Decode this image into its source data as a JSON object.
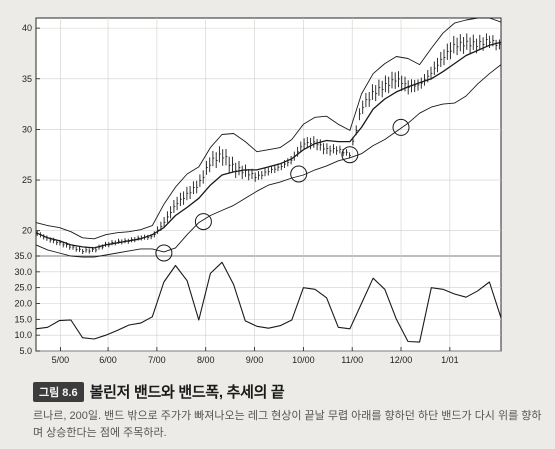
{
  "chart_data": [
    {
      "type": "line",
      "title": "",
      "xlabel": "",
      "ylabel": "",
      "ylim": [
        17.5,
        41
      ],
      "y_ticks": [
        20,
        25,
        30,
        35,
        40
      ],
      "x_ticks": [
        "5/00",
        "6/00",
        "7/00",
        "8/00",
        "9/00",
        "10/00",
        "11/00",
        "12/00",
        "1/01"
      ],
      "x_tick_positions": [
        0.5,
        21,
        42,
        63,
        84,
        105,
        126,
        147,
        168
      ],
      "x_range": [
        -10,
        190
      ],
      "grid": true,
      "series": [
        {
          "role": "price-midpoint",
          "x": [
            -10,
            -5,
            0,
            5,
            10,
            15,
            20,
            25,
            30,
            35,
            40,
            45,
            50,
            55,
            60,
            65,
            70,
            75,
            80,
            85,
            90,
            95,
            100,
            105,
            110,
            115,
            120,
            125,
            130,
            135,
            140,
            145,
            150,
            155,
            160,
            165,
            170,
            175,
            180,
            185,
            190
          ],
          "values": [
            19.8,
            19.2,
            18.8,
            18.4,
            18.0,
            18.1,
            18.6,
            18.9,
            19.0,
            19.3,
            19.4,
            20.8,
            22.6,
            23.6,
            24.6,
            26.8,
            27.5,
            26.2,
            25.8,
            25.3,
            25.9,
            26.3,
            27.0,
            28.6,
            28.7,
            28.0,
            28.0,
            27.5,
            32.2,
            33.6,
            34.3,
            35.0,
            34.2,
            34.4,
            35.6,
            37.1,
            38.3,
            38.5,
            38.4,
            38.8,
            38.2
          ]
        },
        {
          "role": "upper-band",
          "x": [
            -10,
            -5,
            0,
            5,
            10,
            15,
            20,
            25,
            30,
            35,
            40,
            45,
            50,
            55,
            60,
            65,
            70,
            75,
            80,
            85,
            90,
            95,
            100,
            105,
            110,
            115,
            120,
            125,
            130,
            135,
            140,
            145,
            150,
            155,
            160,
            165,
            170,
            175,
            180,
            185,
            190
          ],
          "values": [
            20.8,
            20.5,
            20.3,
            19.9,
            19.3,
            19.2,
            19.6,
            19.8,
            19.9,
            20.1,
            20.5,
            22.6,
            24.3,
            25.6,
            26.3,
            28.2,
            29.5,
            29.6,
            28.8,
            27.8,
            28.0,
            28.2,
            29.0,
            30.5,
            31.2,
            31.3,
            30.5,
            29.9,
            33.5,
            35.5,
            36.5,
            37.2,
            37.0,
            36.4,
            38.0,
            39.5,
            40.5,
            40.8,
            41.0,
            41.0,
            40.6
          ]
        },
        {
          "role": "moving-average",
          "x": [
            -10,
            -5,
            0,
            5,
            10,
            15,
            20,
            25,
            30,
            35,
            40,
            45,
            50,
            55,
            60,
            65,
            70,
            75,
            80,
            85,
            90,
            95,
            100,
            105,
            110,
            115,
            120,
            125,
            130,
            135,
            140,
            145,
            150,
            155,
            160,
            165,
            170,
            175,
            180,
            185,
            190
          ],
          "values": [
            19.8,
            19.3,
            19.0,
            18.6,
            18.4,
            18.3,
            18.6,
            18.8,
            19.0,
            19.2,
            19.6,
            20.3,
            21.5,
            22.3,
            23.2,
            24.5,
            25.5,
            25.8,
            26.0,
            26.0,
            26.3,
            26.6,
            27.1,
            28.0,
            28.6,
            28.9,
            28.8,
            28.8,
            30.2,
            32.0,
            33.0,
            33.7,
            34.2,
            34.6,
            35.0,
            35.7,
            36.5,
            37.3,
            37.8,
            38.3,
            38.6
          ]
        },
        {
          "role": "lower-band",
          "x": [
            -10,
            -5,
            0,
            5,
            10,
            15,
            20,
            25,
            30,
            35,
            40,
            45,
            50,
            55,
            60,
            65,
            70,
            75,
            80,
            85,
            90,
            95,
            100,
            105,
            110,
            115,
            120,
            125,
            130,
            135,
            140,
            145,
            150,
            155,
            160,
            165,
            170,
            175,
            180,
            185,
            190
          ],
          "values": [
            18.6,
            18.1,
            17.8,
            17.5,
            17.4,
            17.4,
            17.6,
            17.8,
            18.0,
            18.2,
            18.2,
            17.9,
            18.3,
            19.6,
            20.8,
            21.5,
            22.0,
            22.5,
            23.2,
            23.9,
            24.5,
            24.8,
            25.2,
            25.5,
            26.0,
            26.4,
            26.9,
            27.2,
            27.6,
            28.4,
            29.0,
            29.8,
            30.6,
            31.6,
            32.2,
            32.5,
            32.6,
            33.3,
            34.5,
            35.5,
            36.4
          ]
        }
      ],
      "annotations": [
        {
          "type": "circle",
          "x": 45,
          "y": 17.8
        },
        {
          "type": "circle",
          "x": 62,
          "y": 20.9
        },
        {
          "type": "circle",
          "x": 103,
          "y": 25.6
        },
        {
          "type": "circle",
          "x": 125,
          "y": 27.5
        },
        {
          "type": "circle",
          "x": 147,
          "y": 30.2
        }
      ]
    },
    {
      "type": "line",
      "title": "",
      "xlabel": "",
      "ylabel": "",
      "ylim": [
        5.0,
        35.0
      ],
      "y_ticks": [
        5.0,
        10.0,
        15.0,
        20.0,
        25.0,
        30.0,
        35.0
      ],
      "y_tick_labels": [
        "5.0",
        "10.0",
        "15.0",
        "20.0",
        "25.0",
        "30.0",
        "35.0"
      ],
      "x_range": [
        -10,
        190
      ],
      "grid": true,
      "series": [
        {
          "role": "band-width",
          "x": [
            -10,
            -5,
            0,
            5,
            10,
            15,
            20,
            25,
            30,
            35,
            40,
            45,
            50,
            55,
            60,
            65,
            70,
            75,
            80,
            85,
            90,
            95,
            100,
            105,
            110,
            115,
            120,
            125,
            130,
            135,
            140,
            145,
            150,
            155,
            160,
            165,
            170,
            175,
            180,
            185,
            190
          ],
          "values": [
            12.0,
            12.5,
            14.6,
            14.8,
            9.2,
            8.8,
            10.0,
            11.5,
            13.2,
            13.8,
            15.8,
            26.8,
            32.0,
            27.2,
            14.8,
            29.5,
            33.0,
            26.0,
            14.5,
            12.8,
            12.2,
            13.0,
            14.8,
            25.0,
            24.5,
            21.8,
            12.5,
            12.0,
            20.0,
            28.0,
            24.5,
            15.0,
            8.0,
            7.8,
            25.0,
            24.5,
            23.0,
            22.0,
            24.0,
            26.8,
            15.5
          ]
        }
      ]
    }
  ],
  "figure": {
    "number": "그림 8.6",
    "title": "볼린저 밴드와 밴드폭, 추세의 끝",
    "caption": "르나르, 200일. 밴드 밖으로 주가가 빠져나오는 레그 현상이 끝날 무렵 아래를 향하던 하단 밴드가 다시 위를 향하며 상승한다는 점에 주목하라."
  },
  "colors": {
    "background": "#ecebe7",
    "line": "#1a1a1a",
    "grid": "#cfcfcb",
    "panel_border": "#2a2a2a"
  }
}
